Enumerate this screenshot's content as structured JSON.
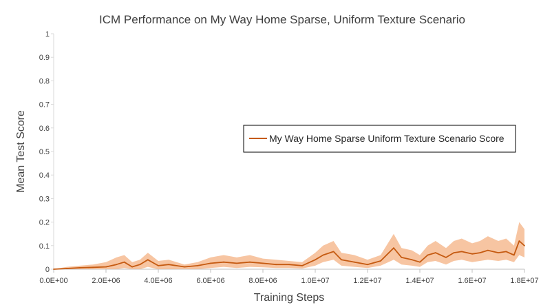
{
  "chart_data": {
    "type": "line",
    "title": "ICM Performance on My Way Home Sparse, Uniform Texture Scenario",
    "xlabel": "Training Steps",
    "ylabel": "Mean Test Score",
    "xlim": [
      0,
      18000000
    ],
    "ylim": [
      0,
      1
    ],
    "x_ticks": [
      "0.0E+00",
      "2.0E+06",
      "4.0E+06",
      "6.0E+06",
      "8.0E+06",
      "1.0E+07",
      "1.2E+07",
      "1.4E+07",
      "1.6E+07",
      "1.8E+07"
    ],
    "y_ticks": [
      "0",
      "0.1",
      "0.2",
      "0.3",
      "0.4",
      "0.5",
      "0.6",
      "0.7",
      "0.8",
      "0.9",
      "1"
    ],
    "grid": false,
    "legend_position": "center-right",
    "series": [
      {
        "name": "My Way Home Sparse Uniform Texture Scenario Score",
        "color": "#C55A11",
        "band_color": "#F4B183",
        "x": [
          0,
          500000,
          1000000,
          1500000,
          2000000,
          2400000,
          2700000,
          3000000,
          3300000,
          3600000,
          4000000,
          4400000,
          5000000,
          5500000,
          6000000,
          6500000,
          7000000,
          7500000,
          8000000,
          8500000,
          9000000,
          9500000,
          10000000,
          10300000,
          10700000,
          11000000,
          11500000,
          12000000,
          12500000,
          13000000,
          13300000,
          13700000,
          14000000,
          14300000,
          14600000,
          15000000,
          15300000,
          15600000,
          16000000,
          16300000,
          16600000,
          17000000,
          17300000,
          17600000,
          17800000,
          18000000
        ],
        "values": [
          0.0,
          0.003,
          0.006,
          0.008,
          0.01,
          0.02,
          0.03,
          0.01,
          0.02,
          0.04,
          0.015,
          0.02,
          0.01,
          0.015,
          0.025,
          0.03,
          0.025,
          0.03,
          0.025,
          0.02,
          0.02,
          0.015,
          0.04,
          0.06,
          0.075,
          0.04,
          0.03,
          0.02,
          0.035,
          0.09,
          0.05,
          0.04,
          0.03,
          0.06,
          0.07,
          0.05,
          0.07,
          0.075,
          0.065,
          0.07,
          0.08,
          0.07,
          0.075,
          0.06,
          0.12,
          0.1
        ],
        "band_upper": [
          0.0,
          0.01,
          0.015,
          0.02,
          0.03,
          0.05,
          0.06,
          0.03,
          0.04,
          0.07,
          0.035,
          0.04,
          0.02,
          0.03,
          0.05,
          0.06,
          0.05,
          0.06,
          0.045,
          0.04,
          0.035,
          0.03,
          0.07,
          0.1,
          0.12,
          0.07,
          0.06,
          0.04,
          0.06,
          0.15,
          0.09,
          0.08,
          0.06,
          0.1,
          0.12,
          0.09,
          0.12,
          0.13,
          0.11,
          0.12,
          0.14,
          0.12,
          0.13,
          0.1,
          0.2,
          0.17
        ],
        "band_lower": [
          0.0,
          0.0,
          0.0,
          0.0,
          0.0,
          0.0,
          0.005,
          0.0,
          0.0,
          0.01,
          0.0,
          0.0,
          0.0,
          0.0,
          0.005,
          0.01,
          0.005,
          0.01,
          0.008,
          0.005,
          0.005,
          0.003,
          0.015,
          0.03,
          0.04,
          0.015,
          0.01,
          0.005,
          0.015,
          0.04,
          0.02,
          0.015,
          0.01,
          0.03,
          0.035,
          0.02,
          0.035,
          0.04,
          0.03,
          0.035,
          0.04,
          0.035,
          0.04,
          0.03,
          0.06,
          0.05
        ]
      }
    ]
  }
}
